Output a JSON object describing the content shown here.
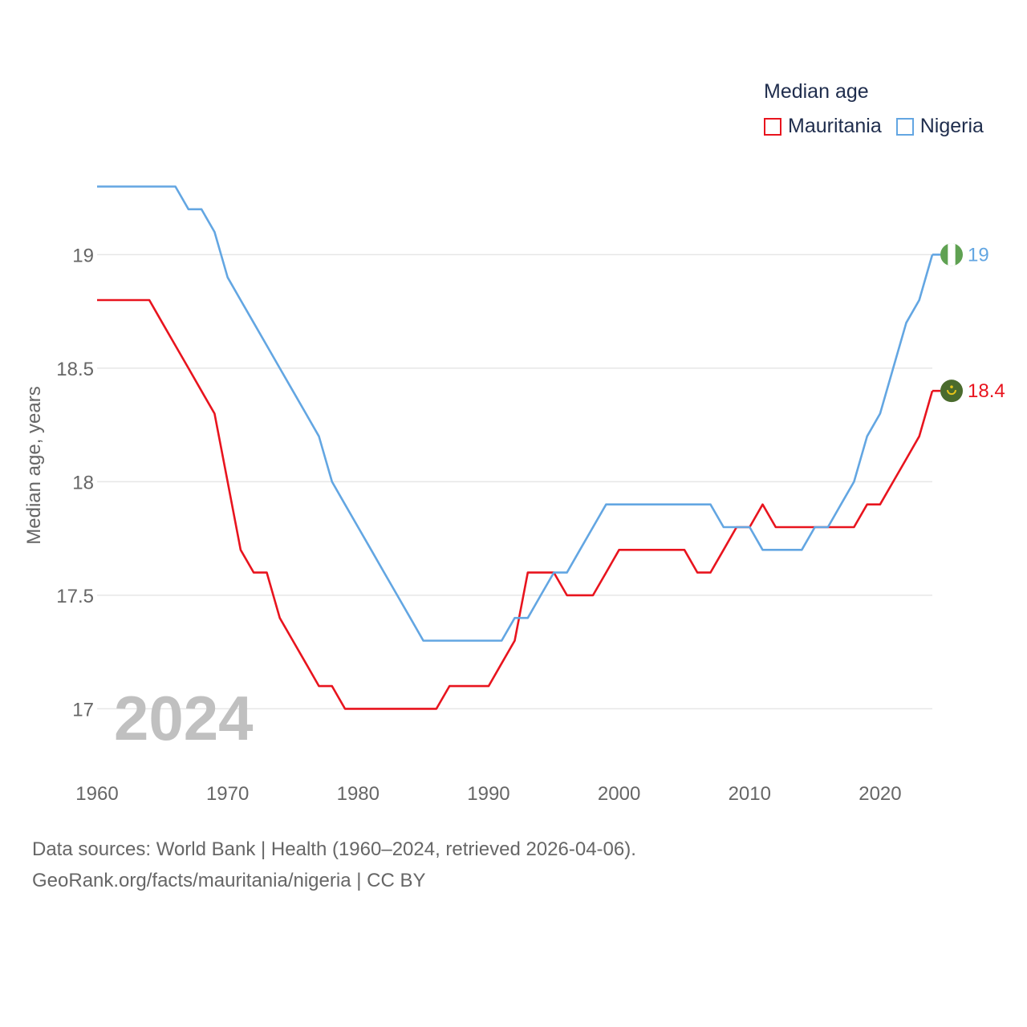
{
  "chart_data": {
    "type": "line",
    "title": "Median age",
    "ylabel": "Median age, years",
    "xlabel": "",
    "xlim": [
      1960,
      2024
    ],
    "ylim": [
      16.8,
      19.45
    ],
    "yticks": [
      17,
      17.5,
      18,
      18.5,
      19
    ],
    "ytick_labels": [
      "17",
      "17.5",
      "18",
      "18.5",
      "19"
    ],
    "xticks": [
      1960,
      1970,
      1980,
      1990,
      2000,
      2010,
      2020
    ],
    "xtick_labels": [
      "1960",
      "1970",
      "1980",
      "1990",
      "2000",
      "2010",
      "2020"
    ],
    "x": [
      1960,
      1961,
      1962,
      1963,
      1964,
      1965,
      1966,
      1967,
      1968,
      1969,
      1970,
      1971,
      1972,
      1973,
      1974,
      1975,
      1976,
      1977,
      1978,
      1979,
      1980,
      1981,
      1982,
      1983,
      1984,
      1985,
      1986,
      1987,
      1988,
      1989,
      1990,
      1991,
      1992,
      1993,
      1994,
      1995,
      1996,
      1997,
      1998,
      1999,
      2000,
      2001,
      2002,
      2003,
      2004,
      2005,
      2006,
      2007,
      2008,
      2009,
      2010,
      2011,
      2012,
      2013,
      2014,
      2015,
      2016,
      2017,
      2018,
      2019,
      2020,
      2021,
      2022,
      2023,
      2024
    ],
    "series": [
      {
        "name": "Mauritania",
        "color": "#e8141e",
        "end_label": "18.4",
        "flag_icon": "mauritania-flag-icon",
        "values": [
          18.8,
          18.8,
          18.8,
          18.8,
          18.8,
          18.7,
          18.6,
          18.5,
          18.4,
          18.3,
          18.0,
          17.7,
          17.6,
          17.6,
          17.4,
          17.3,
          17.2,
          17.1,
          17.1,
          17.0,
          17.0,
          17.0,
          17.0,
          17.0,
          17.0,
          17.0,
          17.0,
          17.1,
          17.1,
          17.1,
          17.1,
          17.2,
          17.3,
          17.6,
          17.6,
          17.6,
          17.5,
          17.5,
          17.5,
          17.6,
          17.7,
          17.7,
          17.7,
          17.7,
          17.7,
          17.7,
          17.6,
          17.6,
          17.7,
          17.8,
          17.8,
          17.9,
          17.8,
          17.8,
          17.8,
          17.8,
          17.8,
          17.8,
          17.8,
          17.9,
          17.9,
          18.0,
          18.1,
          18.2,
          18.4
        ]
      },
      {
        "name": "Nigeria",
        "color": "#63a6e2",
        "end_label": "19",
        "flag_icon": "nigeria-flag-icon",
        "values": [
          19.3,
          19.3,
          19.3,
          19.3,
          19.3,
          19.3,
          19.3,
          19.2,
          19.2,
          19.1,
          18.9,
          18.8,
          18.7,
          18.6,
          18.5,
          18.4,
          18.3,
          18.2,
          18.0,
          17.9,
          17.8,
          17.7,
          17.6,
          17.5,
          17.4,
          17.3,
          17.3,
          17.3,
          17.3,
          17.3,
          17.3,
          17.3,
          17.4,
          17.4,
          17.5,
          17.6,
          17.6,
          17.7,
          17.8,
          17.9,
          17.9,
          17.9,
          17.9,
          17.9,
          17.9,
          17.9,
          17.9,
          17.9,
          17.8,
          17.8,
          17.8,
          17.7,
          17.7,
          17.7,
          17.7,
          17.8,
          17.8,
          17.9,
          18.0,
          18.2,
          18.3,
          18.5,
          18.7,
          18.8,
          19.0
        ]
      }
    ],
    "legend_title": "Median age",
    "legend_position": "top-right",
    "grid": true,
    "annotation_year": "2024"
  },
  "legend": {
    "title": "Median age",
    "items": [
      {
        "label": "Mauritania",
        "color": "#e8141e"
      },
      {
        "label": "Nigeria",
        "color": "#63a6e2"
      }
    ]
  },
  "footer": {
    "line1": "Data sources: World Bank | Health (1960–2024, retrieved 2026-04-06).",
    "line2": "GeoRank.org/facts/mauritania/nigeria | CC BY"
  }
}
